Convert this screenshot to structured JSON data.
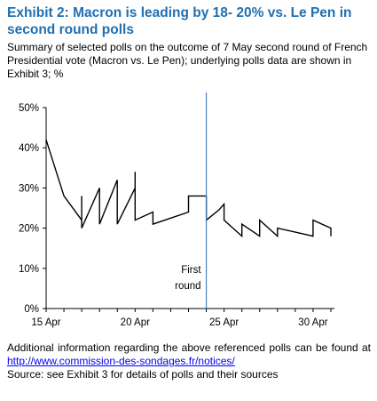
{
  "header": {
    "title": "Exhibit 2: Macron is leading by 18- 20% vs. Le Pen in second round polls",
    "subtitle": "Summary of selected polls on the outcome of 7 May second round of French Presidential vote (Macron vs. Le Pen); underlying polls data are shown in Exhibit 3; %"
  },
  "footer": {
    "info_words": [
      "Additional",
      "information",
      "regarding",
      "the",
      "above",
      "referenced",
      "polls",
      "can",
      "be",
      "found",
      "at"
    ],
    "link": "http://www.commission-des-sondages.fr/notices/",
    "source": "Source: see Exhibit 3 for details of polls and their sources"
  },
  "colors": {
    "title": "#1f6fb2",
    "series": "#000000",
    "marker_line": "#4f81bd"
  },
  "chart_data": {
    "type": "line",
    "title": "",
    "xlabel": "",
    "ylabel": "",
    "x_ticks": [
      {
        "day": 15,
        "label": "15 Apr"
      },
      {
        "day": 20,
        "label": "20 Apr"
      },
      {
        "day": 25,
        "label": "25 Apr"
      },
      {
        "day": 30,
        "label": "30 Apr"
      }
    ],
    "xlim": [
      15,
      31.2
    ],
    "ylim": [
      0,
      50
    ],
    "y_ticks": [
      {
        "value": 0,
        "label": "0%"
      },
      {
        "value": 10,
        "label": "10%"
      },
      {
        "value": 20,
        "label": "20%"
      },
      {
        "value": 30,
        "label": "30%"
      },
      {
        "value": 40,
        "label": "40%"
      },
      {
        "value": 50,
        "label": "50%"
      }
    ],
    "grid": false,
    "series": [
      {
        "x": [
          15,
          16,
          17,
          17,
          17,
          18,
          18,
          19,
          19,
          20,
          20,
          20,
          21,
          21,
          23,
          23,
          24,
          24,
          24.7,
          25,
          25,
          26,
          26,
          27,
          27,
          28,
          28,
          29,
          30,
          30,
          31,
          31
        ],
        "values": [
          42,
          28,
          22,
          28,
          20,
          30,
          21,
          32,
          21,
          30,
          34,
          22,
          24,
          21,
          24,
          28,
          28,
          22,
          24.5,
          26,
          22,
          18,
          21,
          18,
          22,
          18,
          20,
          19,
          18,
          22,
          20,
          18
        ]
      }
    ],
    "annotations": [
      {
        "type": "vline",
        "x": 24,
        "label_lines": [
          "First",
          "round"
        ]
      }
    ]
  }
}
